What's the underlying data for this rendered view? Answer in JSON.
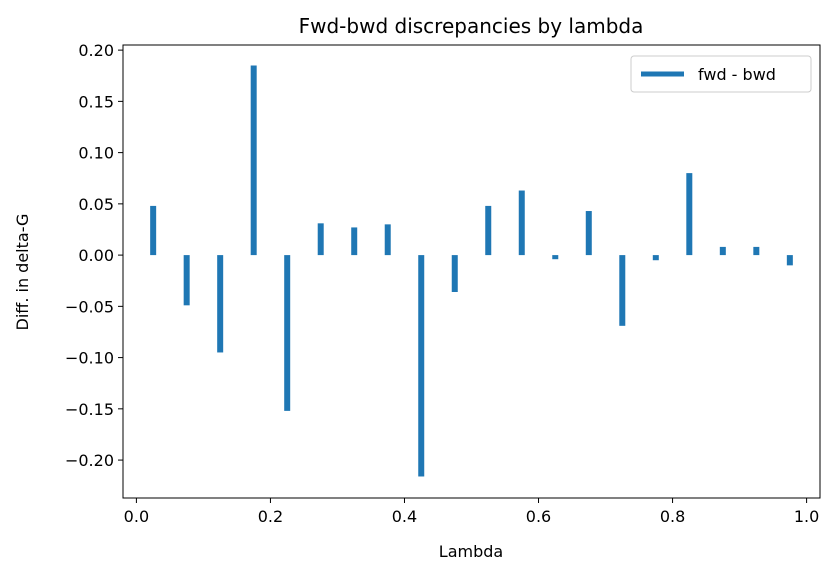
{
  "chart_data": {
    "type": "bar",
    "title": "Fwd-bwd discrepancies by lambda",
    "xlabel": "Lambda",
    "ylabel": "Diff. in delta-G",
    "xlim": [
      -0.02,
      1.02
    ],
    "ylim": [
      -0.237,
      0.205
    ],
    "xticks": [
      0.0,
      0.2,
      0.4,
      0.6,
      0.8,
      1.0
    ],
    "xtick_labels": [
      "0.0",
      "0.2",
      "0.4",
      "0.6",
      "0.8",
      "1.0"
    ],
    "yticks": [
      0.2,
      0.15,
      0.1,
      0.05,
      0.0,
      -0.05,
      -0.1,
      -0.15,
      -0.2
    ],
    "ytick_labels": [
      "0.20",
      "0.15",
      "0.10",
      "0.05",
      "0.00",
      "−0.05",
      "−0.10",
      "−0.15",
      "−0.20"
    ],
    "grid": false,
    "legend_position": "top-right",
    "series": [
      {
        "name": "fwd - bwd",
        "color": "#1f77b4",
        "x": [
          0.025,
          0.075,
          0.125,
          0.175,
          0.225,
          0.275,
          0.325,
          0.375,
          0.425,
          0.475,
          0.525,
          0.575,
          0.625,
          0.675,
          0.725,
          0.775,
          0.825,
          0.875,
          0.925,
          0.975
        ],
        "values": [
          0.048,
          -0.049,
          -0.095,
          0.185,
          -0.152,
          0.031,
          0.027,
          0.03,
          -0.216,
          -0.036,
          0.048,
          0.063,
          -0.004,
          0.043,
          -0.069,
          -0.005,
          0.08,
          0.008,
          0.008,
          -0.01
        ]
      }
    ]
  }
}
